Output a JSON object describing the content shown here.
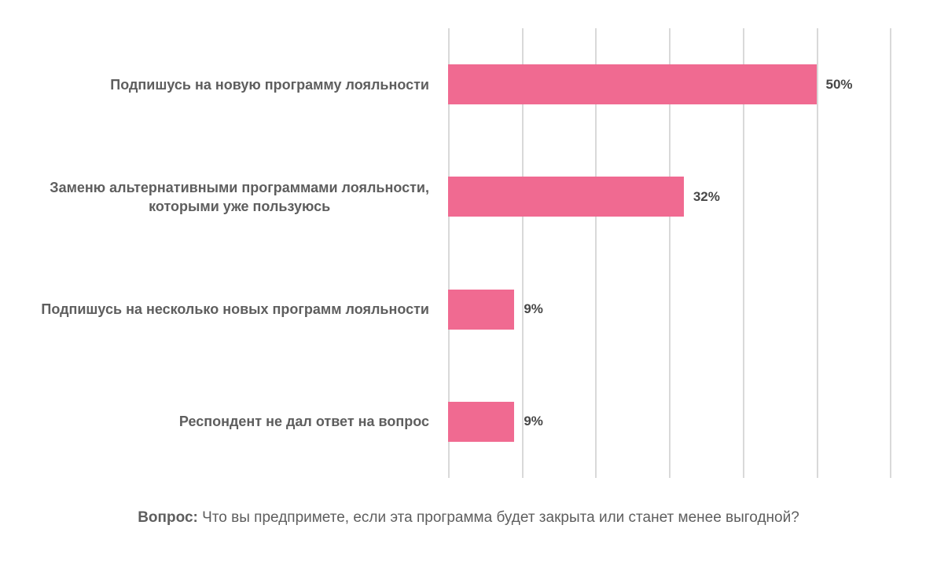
{
  "chart_data": {
    "type": "bar",
    "orientation": "horizontal",
    "title": "",
    "categories": [
      "Подпишусь на новую программу лояльности",
      "Заменю альтернативными программами лояльности,\nкоторыми уже пользуюсь",
      "Подпишусь на несколько новых программ лояльности",
      "Респондент не дал ответ на вопрос"
    ],
    "values": [
      50,
      32,
      9,
      9
    ],
    "value_labels": [
      "50%",
      "32%",
      "9%",
      "9%"
    ],
    "xlabel": "",
    "ylabel": "",
    "xlim": [
      0,
      60
    ],
    "x_tick_interval": 10,
    "grid": "vertical-only",
    "legend": "none",
    "bar_color": "#F06A91",
    "gridline_color": "#D9D9D9",
    "label_color": "#5E5E5E",
    "value_color": "#474747"
  },
  "footer": {
    "prefix": "Вопрос:",
    "question": "Что вы предпримете, если эта программа будет закрыта или станет менее выгодной?"
  }
}
